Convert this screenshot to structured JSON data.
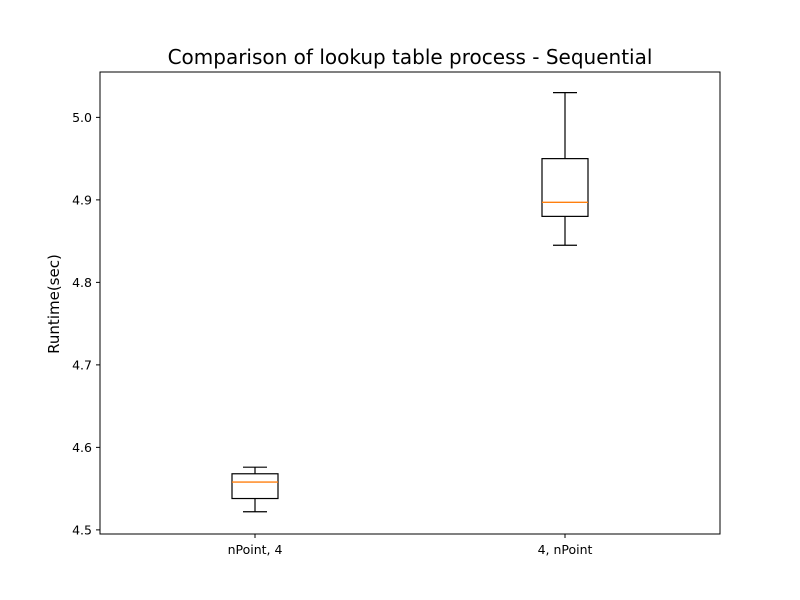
{
  "chart_data": {
    "type": "boxplot",
    "title": "Comparison of lookup table process - Sequential",
    "xlabel": "",
    "ylabel": "Runtime(sec)",
    "ylim": [
      4.495,
      5.055
    ],
    "yticks": [
      "4.5",
      "4.6",
      "4.7",
      "4.8",
      "4.9",
      "5.0"
    ],
    "grid": false,
    "categories": [
      "nPoint, 4",
      "4, nPoint"
    ],
    "boxes": [
      {
        "category": "nPoint, 4",
        "whisker_low": 4.522,
        "q1": 4.538,
        "median": 4.558,
        "q3": 4.568,
        "whisker_high": 4.576
      },
      {
        "category": "4, nPoint",
        "whisker_low": 4.845,
        "q1": 4.88,
        "median": 4.897,
        "q3": 4.95,
        "whisker_high": 5.03
      }
    ],
    "colors": {
      "box": "#000000",
      "median": "#ff7f0e",
      "axes": "#000000"
    }
  }
}
